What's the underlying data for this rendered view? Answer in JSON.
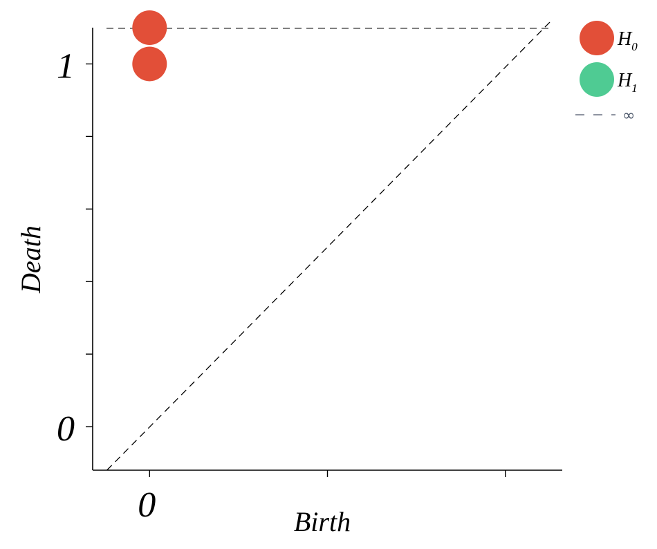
{
  "chart_data": {
    "type": "scatter",
    "title": "",
    "xlabel": "Birth",
    "ylabel": "Death",
    "xlim": [
      -0.16,
      1.16
    ],
    "ylim": [
      -0.12,
      1.1
    ],
    "x_ticks": [
      0,
      0.5,
      1
    ],
    "x_tick_labels": [
      "0",
      "",
      ""
    ],
    "y_ticks": [
      0,
      0.2,
      0.4,
      0.6,
      0.8,
      1
    ],
    "y_tick_labels": [
      "0",
      "",
      "",
      "",
      "",
      "1"
    ],
    "infinity_value": 1.1,
    "diagonal": true,
    "grid": false,
    "legend_position": "top-right",
    "series": [
      {
        "name": "H",
        "subscript": "0",
        "color": "#e24f38",
        "points": [
          {
            "birth": 0,
            "death": 1.1
          },
          {
            "birth": 0,
            "death": 1.0
          }
        ]
      },
      {
        "name": "H",
        "subscript": "1",
        "color": "#4fcb93",
        "points": []
      }
    ],
    "infinity_legend": {
      "label": "∞",
      "color": "#4a5568"
    }
  }
}
